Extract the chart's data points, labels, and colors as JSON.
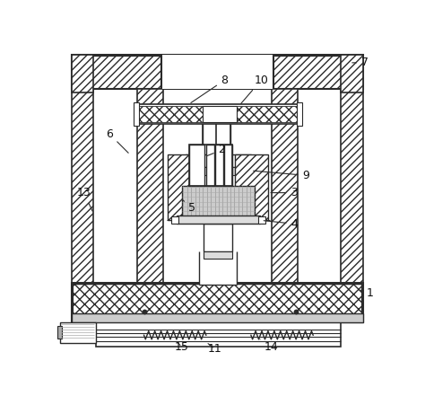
{
  "bg_color": "#ffffff",
  "lc": "#2a2a2a",
  "figsize": [
    4.74,
    4.41
  ],
  "dpi": 100
}
